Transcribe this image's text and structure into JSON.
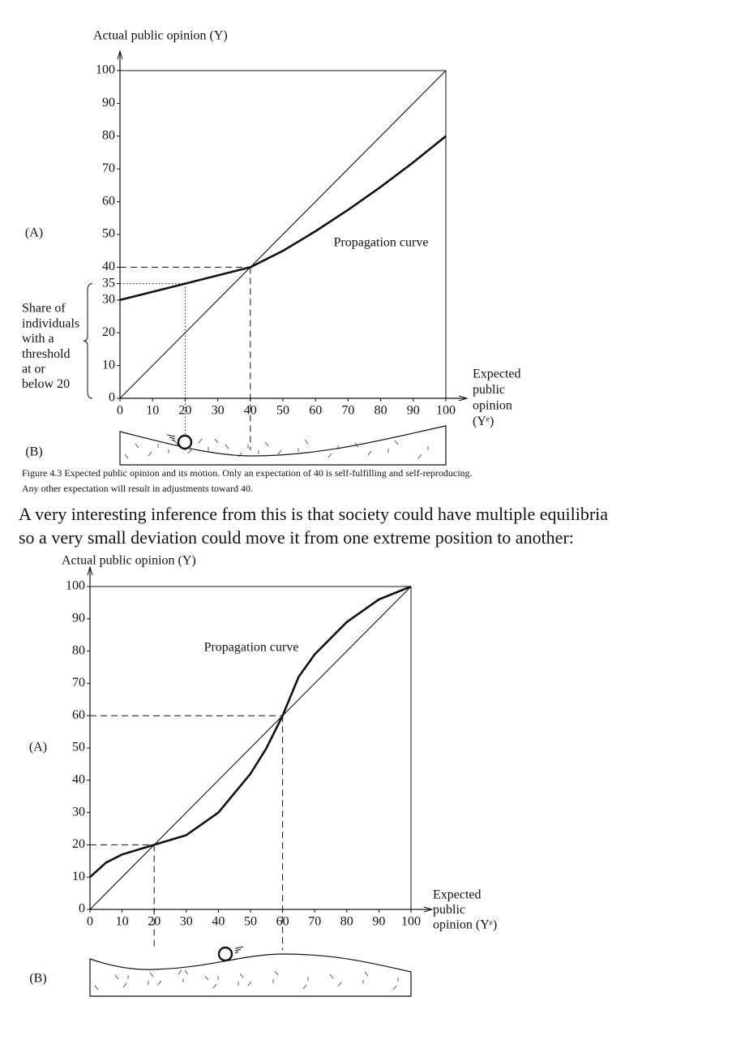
{
  "chart_data": [
    {
      "type": "line",
      "ylabel": "Actual public opinion (Y)",
      "xlabel": [
        "Expected",
        "public",
        "opinion",
        "(Yᵉ)"
      ],
      "panel_labels": [
        "(A)",
        "(B)"
      ],
      "xlim": [
        0,
        100
      ],
      "ylim": [
        0,
        100
      ],
      "xticks": [
        0,
        10,
        20,
        30,
        40,
        50,
        60,
        70,
        80,
        90,
        100
      ],
      "yticks": [
        0,
        10,
        20,
        30,
        35,
        40,
        50,
        60,
        70,
        80,
        90,
        100
      ],
      "series": [
        {
          "x": [
            0,
            100
          ],
          "values": [
            0,
            100
          ],
          "color": "#111111"
        },
        {
          "name": "Propagation curve",
          "x": [
            0,
            10,
            20,
            30,
            40,
            50,
            60,
            70,
            80,
            90,
            100
          ],
          "values": [
            30,
            32.5,
            35,
            37.5,
            40,
            45,
            51,
            57.5,
            64.5,
            72,
            80
          ],
          "color": "#111111"
        }
      ],
      "equilibria": [
        {
          "x": 40,
          "y": 40,
          "style": "dashed"
        },
        {
          "x": 20,
          "y": 35,
          "style": "dotted"
        }
      ],
      "brace_label": [
        "Share of",
        "individuals",
        "with a",
        "threshold",
        "at or",
        "below 20"
      ]
    },
    {
      "type": "line",
      "ylabel": "Actual public opinion (Y)",
      "xlabel": [
        "Expected",
        "public",
        "opinion (Yᵉ)"
      ],
      "panel_labels": [
        "(A)",
        "(B)"
      ],
      "xlim": [
        0,
        100
      ],
      "ylim": [
        0,
        100
      ],
      "xticks": [
        0,
        10,
        20,
        30,
        40,
        50,
        60,
        70,
        80,
        90,
        100
      ],
      "yticks": [
        0,
        10,
        20,
        30,
        40,
        50,
        60,
        70,
        80,
        90,
        100
      ],
      "series": [
        {
          "x": [
            0,
            100
          ],
          "values": [
            0,
            100
          ],
          "color": "#111111"
        },
        {
          "name": "Propagation curve",
          "x": [
            0,
            5,
            10,
            20,
            30,
            40,
            50,
            55,
            60,
            65,
            70,
            80,
            90,
            100
          ],
          "values": [
            10,
            14.5,
            17,
            20,
            23,
            30,
            42,
            50,
            60,
            72,
            79,
            89,
            96,
            100
          ],
          "color": "#111111"
        }
      ],
      "equilibria": [
        {
          "x": 20,
          "y": 20,
          "style": "dashed"
        },
        {
          "x": 60,
          "y": 60,
          "style": "dashed"
        }
      ]
    }
  ],
  "caption": [
    "Figure 4.3 Expected public opinion and its motion. Only an expectation of 40 is self-fulfilling and self-reproducing.",
    "Any other expectation will result in adjustments toward 40."
  ],
  "paragraph": [
    "A very interesting inference from this is that society could have multiple equilibria",
    "so a very small deviation could move it from one extreme position to another:"
  ]
}
